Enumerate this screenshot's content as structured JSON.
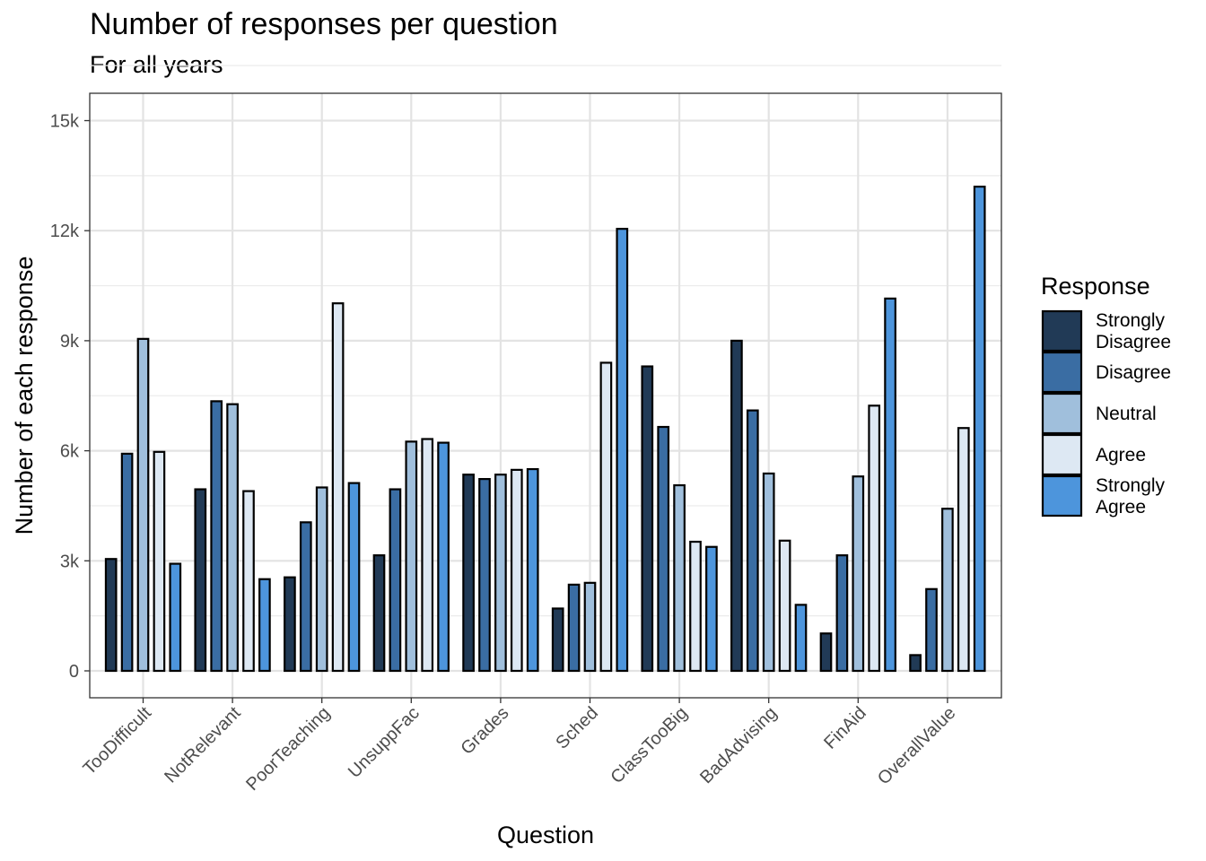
{
  "chart_data": {
    "type": "bar",
    "title": "Number of responses per question",
    "subtitle": "For all years",
    "xlabel": "Question",
    "ylabel": "Number of each response",
    "ylim": [
      0,
      15000
    ],
    "yticks": [
      0,
      3000,
      6000,
      9000,
      12000,
      15000
    ],
    "ytick_labels": [
      "0",
      "3k",
      "6k",
      "9k",
      "12k",
      "15k"
    ],
    "grid": true,
    "legend_title": "Response",
    "legend_position": "right",
    "categories": [
      "TooDifficult",
      "NotRelevant",
      "PoorTeaching",
      "UnsuppFac",
      "Grades",
      "Sched",
      "ClassTooBig",
      "BadAdvising",
      "FinAid",
      "OverallValue"
    ],
    "series": [
      {
        "name": "Strongly Disagree",
        "color": "#213a56",
        "values": [
          3050,
          4950,
          2550,
          3150,
          5350,
          1700,
          8300,
          9000,
          1020,
          430
        ]
      },
      {
        "name": "Disagree",
        "color": "#3a6da3",
        "values": [
          5920,
          7350,
          4050,
          4950,
          5230,
          2350,
          6650,
          7100,
          3150,
          2230
        ]
      },
      {
        "name": "Neutral",
        "color": "#a0bfdc",
        "values": [
          9050,
          7270,
          5000,
          6250,
          5350,
          2400,
          5060,
          5380,
          5300,
          4420
        ]
      },
      {
        "name": "Agree",
        "color": "#dde8f3",
        "values": [
          5970,
          4900,
          10020,
          6320,
          5480,
          8400,
          3520,
          3550,
          7230,
          6620
        ]
      },
      {
        "name": "Strongly Agree",
        "color": "#4d95dc",
        "values": [
          2920,
          2500,
          5120,
          6220,
          5500,
          12050,
          3380,
          1800,
          10150,
          13200
        ]
      }
    ]
  }
}
